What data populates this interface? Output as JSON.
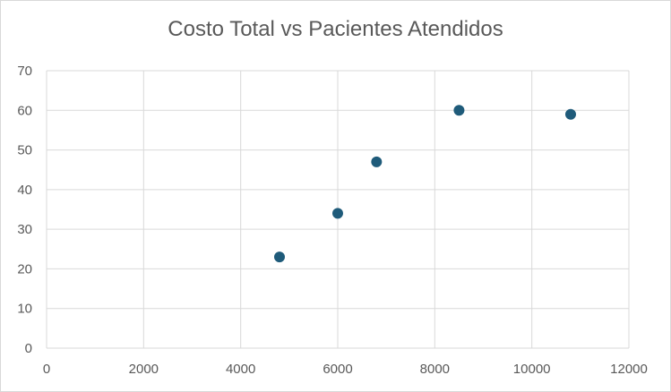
{
  "chart_data": {
    "type": "scatter",
    "title": "Costo Total vs Pacientes Atendidos",
    "xlabel": "",
    "ylabel": "",
    "xlim": [
      0,
      12000
    ],
    "ylim": [
      0,
      70
    ],
    "x_ticks": [
      0,
      2000,
      4000,
      6000,
      8000,
      10000,
      12000
    ],
    "y_ticks": [
      0,
      10,
      20,
      30,
      40,
      50,
      60,
      70
    ],
    "grid": true,
    "legend": "none",
    "series": [
      {
        "color": "#1f5b7a",
        "points": [
          {
            "x": 4800,
            "y": 23
          },
          {
            "x": 6000,
            "y": 34
          },
          {
            "x": 6800,
            "y": 47
          },
          {
            "x": 8500,
            "y": 60
          },
          {
            "x": 10800,
            "y": 59
          }
        ]
      }
    ]
  }
}
